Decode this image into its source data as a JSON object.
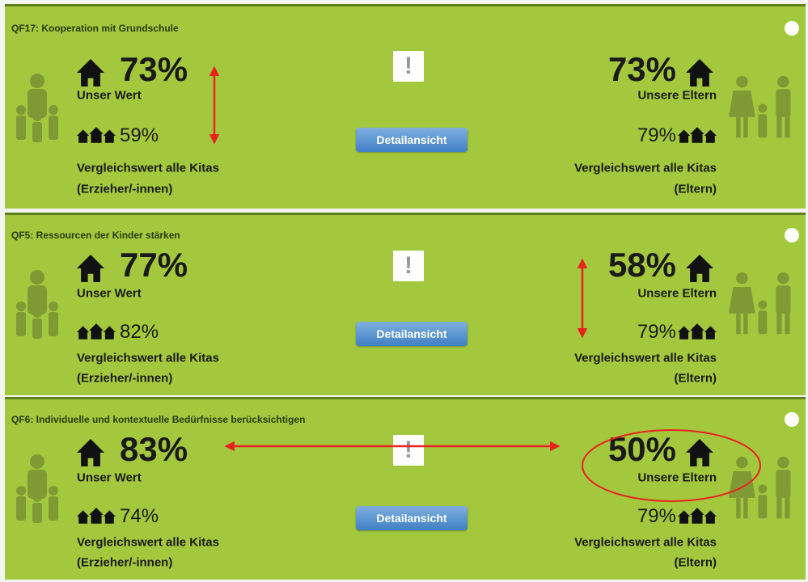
{
  "panels": [
    {
      "title": "QF17: Kooperation mit Grundschule",
      "own": {
        "value": "73%",
        "label": "Unser Wert",
        "compare_value": "59%",
        "compare_label": "Vergleichswert alle Kitas",
        "compare_group": "(Erzieher/-innen)"
      },
      "button": "Detailansicht",
      "parents": {
        "value": "73%",
        "label": "Unsere Eltern",
        "compare_value": "79%",
        "compare_label": "Vergleichswert alle Kitas",
        "compare_group": "(Eltern)"
      }
    },
    {
      "title": "QF5: Ressourcen der Kinder stärken",
      "own": {
        "value": "77%",
        "label": "Unser Wert",
        "compare_value": "82%",
        "compare_label": "Vergleichswert alle Kitas",
        "compare_group": "(Erzieher/-innen)"
      },
      "button": "Detailansicht",
      "parents": {
        "value": "58%",
        "label": "Unsere Eltern",
        "compare_value": "79%",
        "compare_label": "Vergleichswert alle Kitas",
        "compare_group": "(Eltern)"
      }
    },
    {
      "title": "QF6: Individuelle und kontextuelle Bedürfnisse berücksichtigen",
      "own": {
        "value": "83%",
        "label": "Unser Wert",
        "compare_value": "74%",
        "compare_label": "Vergleichswert alle Kitas",
        "compare_group": "(Erzieher/-innen)"
      },
      "button": "Detailansicht",
      "parents": {
        "value": "50%",
        "label": "Unsere Eltern",
        "compare_value": "79%",
        "compare_label": "Vergleichswert alle Kitas",
        "compare_group": "(Eltern)"
      }
    }
  ]
}
